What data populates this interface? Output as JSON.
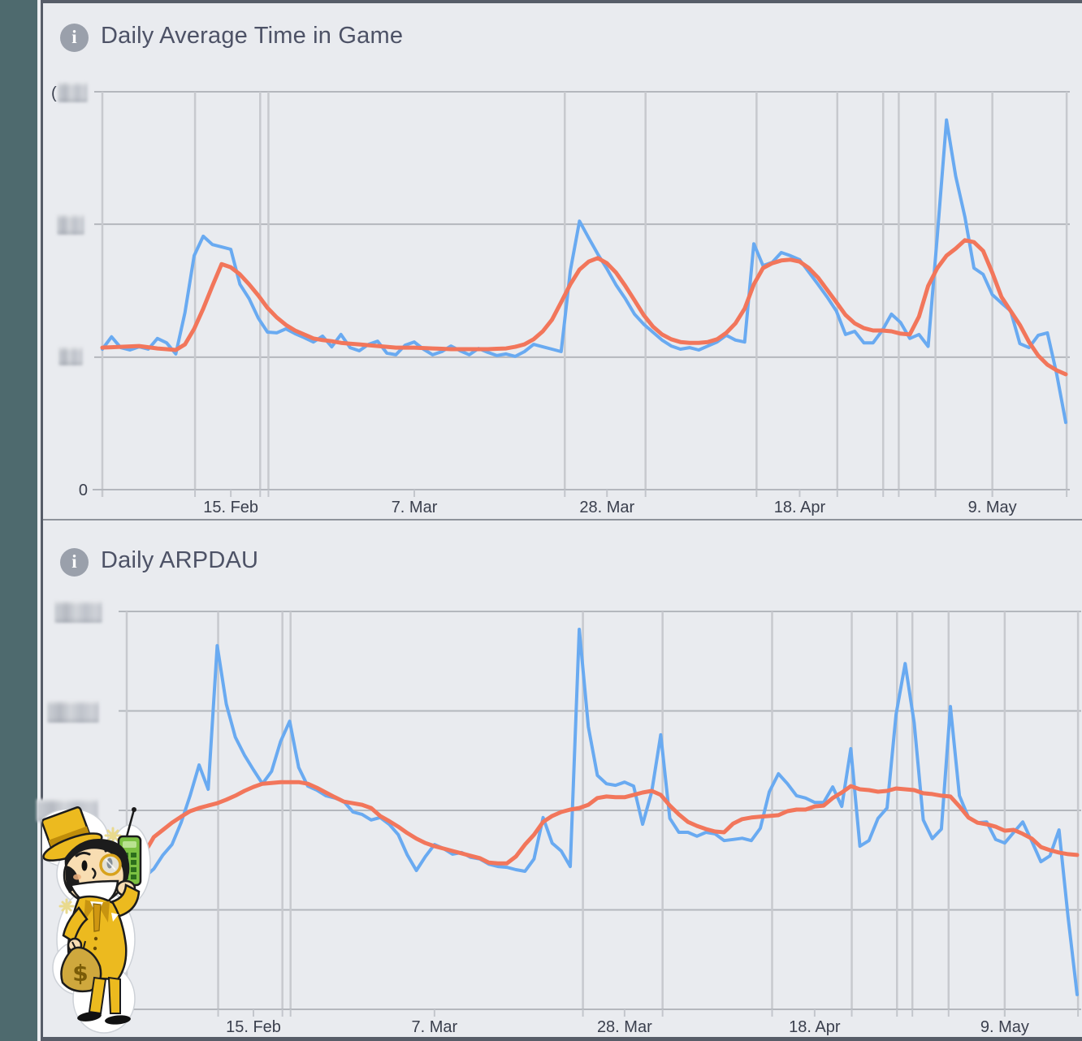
{
  "panels": [
    {
      "info_icon_glyph": "i",
      "title": "Daily Average Time in Game"
    },
    {
      "info_icon_glyph": "i",
      "title": "Daily ARPDAU"
    }
  ],
  "colors": {
    "line_daily": "#69aaf1",
    "line_trend": "#f2765b",
    "panel_background": "#e9ebef",
    "sidebar_strip": "#4e6a6e",
    "grid_horizontal": "#b4b7bd",
    "grid_vertical": "#c7c9ce",
    "title_text": "#4d5266",
    "axis_text": "#3a3f4d"
  },
  "mascot": {
    "description": "cartoon capitalist mascot with gold top hat, monocle, green brick phone and money bag",
    "bag_symbol": "$"
  },
  "chart_data": [
    {
      "type": "line",
      "title": "Daily Average Time in Game",
      "x_unit": "day index (one point per day)",
      "x_domain": [
        0,
        105
      ],
      "x_tick_labels": [
        {
          "label": "15. Feb",
          "day": 14
        },
        {
          "label": "7. Mar",
          "day": 34
        },
        {
          "label": "28. Mar",
          "day": 55
        },
        {
          "label": "18. Apr",
          "day": 76
        },
        {
          "label": "9. May",
          "day": 97
        }
      ],
      "event_marker_days": [
        10.1,
        17.2,
        18.1,
        50.4,
        59.2,
        71.3,
        80.1,
        85.1,
        86.8,
        90.8,
        97.0,
        105.1
      ],
      "ylim": [
        0,
        100
      ],
      "y_unit": "percent of y-axis max (numeric tick labels are pixelated/redacted in source)",
      "y_ticks": [
        {
          "value": 0,
          "label": "0",
          "redacted": false
        },
        {
          "value": 33.3,
          "label": null,
          "redacted": true
        },
        {
          "value": 66.7,
          "label": null,
          "redacted": true
        },
        {
          "value": 100,
          "label": null,
          "redacted": true,
          "partial_glyph_visible": "("
        }
      ],
      "grid": true,
      "legend": "none",
      "series": [
        {
          "name": "daily value",
          "color": "#69aaf1",
          "values": [
            35.3,
            38.4,
            35.7,
            35.1,
            35.9,
            35.3,
            38.0,
            36.9,
            34.1,
            44.5,
            58.8,
            63.7,
            61.6,
            61.0,
            60.4,
            51.6,
            48.0,
            43.1,
            39.6,
            39.4,
            40.4,
            39.2,
            38.2,
            37.1,
            38.6,
            35.9,
            39.0,
            35.7,
            34.9,
            36.5,
            37.3,
            34.3,
            33.9,
            36.3,
            37.1,
            35.3,
            33.9,
            34.7,
            36.1,
            34.9,
            33.9,
            35.5,
            34.5,
            33.7,
            34.1,
            33.5,
            34.7,
            36.5,
            35.9,
            35.3,
            34.7,
            55.0,
            67.5,
            63.3,
            59.2,
            55.5,
            51.4,
            48.0,
            44.1,
            41.6,
            39.6,
            37.6,
            36.1,
            35.3,
            35.7,
            35.1,
            36.1,
            37.1,
            38.8,
            37.6,
            37.1,
            61.8,
            56.3,
            57.1,
            59.6,
            58.8,
            57.8,
            54.7,
            51.6,
            48.4,
            44.9,
            39.0,
            39.8,
            36.9,
            36.9,
            40.0,
            44.1,
            42.0,
            38.0,
            39.0,
            36.0,
            63.9,
            92.9,
            78.8,
            68.6,
            55.7,
            54.1,
            49.0,
            46.9,
            44.9,
            36.7,
            35.7,
            38.8,
            39.4,
            29.2,
            16.9
          ]
        },
        {
          "name": "smoothed trend",
          "color": "#f2765b",
          "values": [
            35.7,
            35.8,
            35.9,
            36.0,
            36.1,
            35.8,
            35.5,
            35.3,
            35.1,
            36.5,
            40.4,
            45.5,
            51.2,
            56.7,
            55.9,
            54.1,
            51.6,
            48.8,
            45.7,
            43.3,
            41.4,
            40.0,
            39.0,
            38.0,
            37.6,
            37.3,
            36.9,
            36.7,
            36.5,
            36.3,
            36.1,
            35.9,
            35.7,
            35.7,
            35.7,
            35.6,
            35.5,
            35.4,
            35.3,
            35.3,
            35.3,
            35.3,
            35.3,
            35.4,
            35.5,
            35.9,
            36.5,
            37.8,
            39.8,
            42.7,
            47.1,
            51.6,
            55.3,
            57.3,
            58.2,
            56.9,
            54.5,
            51.2,
            47.6,
            43.9,
            41.0,
            39.0,
            37.8,
            37.1,
            36.9,
            36.9,
            37.1,
            37.8,
            39.4,
            41.8,
            45.5,
            51.6,
            55.7,
            56.9,
            57.6,
            57.8,
            57.3,
            55.7,
            53.3,
            50.2,
            47.1,
            43.9,
            41.8,
            40.6,
            40.0,
            40.0,
            39.8,
            39.2,
            39.0,
            43.5,
            51.2,
            55.7,
            58.8,
            60.6,
            62.7,
            62.2,
            60.0,
            54.5,
            48.4,
            44.9,
            41.4,
            37.1,
            33.7,
            31.4,
            30.0,
            29.0
          ]
        }
      ]
    },
    {
      "type": "line",
      "title": "Daily ARPDAU",
      "x_unit": "day index (one point per day)",
      "x_domain": [
        0,
        105
      ],
      "x_tick_labels": [
        {
          "label": "15. Feb",
          "day": 14
        },
        {
          "label": "7. Mar",
          "day": 34
        },
        {
          "label": "28. Mar",
          "day": 55
        },
        {
          "label": "18. Apr",
          "day": 76
        },
        {
          "label": "9. May",
          "day": 97
        }
      ],
      "event_marker_days": [
        10.1,
        17.2,
        18.1,
        50.4,
        59.2,
        71.3,
        80.1,
        85.1,
        86.8,
        90.8,
        97.0,
        105.1
      ],
      "ylim": [
        0,
        100
      ],
      "y_unit": "percent of y-axis max (currency tick labels are pixelated/redacted in source)",
      "y_ticks": [
        {
          "value": 0,
          "label": null,
          "redacted": false
        },
        {
          "value": 25,
          "label": null,
          "redacted": true,
          "hidden_behind_mascot": true
        },
        {
          "value": 50,
          "label": null,
          "redacted": true
        },
        {
          "value": 75,
          "label": null,
          "redacted": true
        },
        {
          "value": 100,
          "label": null,
          "redacted": true
        }
      ],
      "grid": true,
      "legend": "none",
      "series": [
        {
          "name": "daily value",
          "color": "#69aaf1",
          "values": [
            29.2,
            31.2,
            33.3,
            35.3,
            38.8,
            41.4,
            46.9,
            53.7,
            61.4,
            55.3,
            91.4,
            76.7,
            68.4,
            63.9,
            60.2,
            56.7,
            59.8,
            67.3,
            72.4,
            60.8,
            56.1,
            55.1,
            53.7,
            53.1,
            52.2,
            49.6,
            49.0,
            47.6,
            48.2,
            46.5,
            43.9,
            38.8,
            34.9,
            38.4,
            41.4,
            40.4,
            39.0,
            39.4,
            38.2,
            37.8,
            36.5,
            35.9,
            35.7,
            35.1,
            34.7,
            37.8,
            48.2,
            41.8,
            39.8,
            35.9,
            95.5,
            71.0,
            58.8,
            56.7,
            56.3,
            57.1,
            56.1,
            46.5,
            54.7,
            69.0,
            48.0,
            44.5,
            44.5,
            43.5,
            44.5,
            44.1,
            42.4,
            42.7,
            43.0,
            42.4,
            45.5,
            54.7,
            59.2,
            56.7,
            53.7,
            53.1,
            52.0,
            52.0,
            55.9,
            51.0,
            65.5,
            41.0,
            42.4,
            48.0,
            50.6,
            74.1,
            86.9,
            72.0,
            47.6,
            42.9,
            45.3,
            76.1,
            53.7,
            48.2,
            46.9,
            47.1,
            42.7,
            41.8,
            44.5,
            47.1,
            42.2,
            37.1,
            38.6,
            45.1,
            23.1,
            3.7
          ]
        },
        {
          "name": "smoothed trend",
          "color": "#f2765b",
          "values": [
            37.8,
            39.0,
            39.4,
            43.3,
            45.1,
            46.9,
            48.4,
            49.8,
            50.6,
            51.2,
            51.8,
            52.7,
            53.7,
            54.9,
            55.9,
            56.7,
            56.9,
            57.1,
            57.1,
            57.1,
            56.7,
            55.7,
            54.5,
            53.3,
            52.2,
            51.8,
            51.4,
            50.6,
            48.6,
            47.3,
            45.9,
            44.3,
            42.9,
            41.8,
            41.0,
            40.4,
            39.8,
            39.2,
            38.6,
            38.0,
            36.9,
            36.7,
            36.7,
            38.4,
            41.4,
            43.9,
            47.1,
            48.6,
            49.6,
            50.2,
            50.6,
            51.4,
            53.1,
            53.5,
            53.3,
            53.3,
            53.9,
            54.5,
            54.9,
            53.9,
            51.2,
            49.0,
            47.1,
            46.1,
            45.3,
            44.7,
            44.5,
            46.7,
            47.8,
            48.2,
            48.4,
            48.6,
            48.8,
            49.8,
            50.2,
            50.2,
            51.0,
            51.2,
            53.1,
            54.5,
            56.1,
            55.3,
            55.1,
            54.7,
            54.9,
            55.5,
            55.3,
            55.1,
            54.3,
            54.1,
            53.7,
            53.5,
            51.0,
            48.2,
            46.9,
            46.5,
            45.9,
            44.9,
            45.1,
            44.1,
            42.9,
            40.8,
            40.0,
            39.4,
            39.0,
            38.8
          ]
        }
      ]
    }
  ]
}
